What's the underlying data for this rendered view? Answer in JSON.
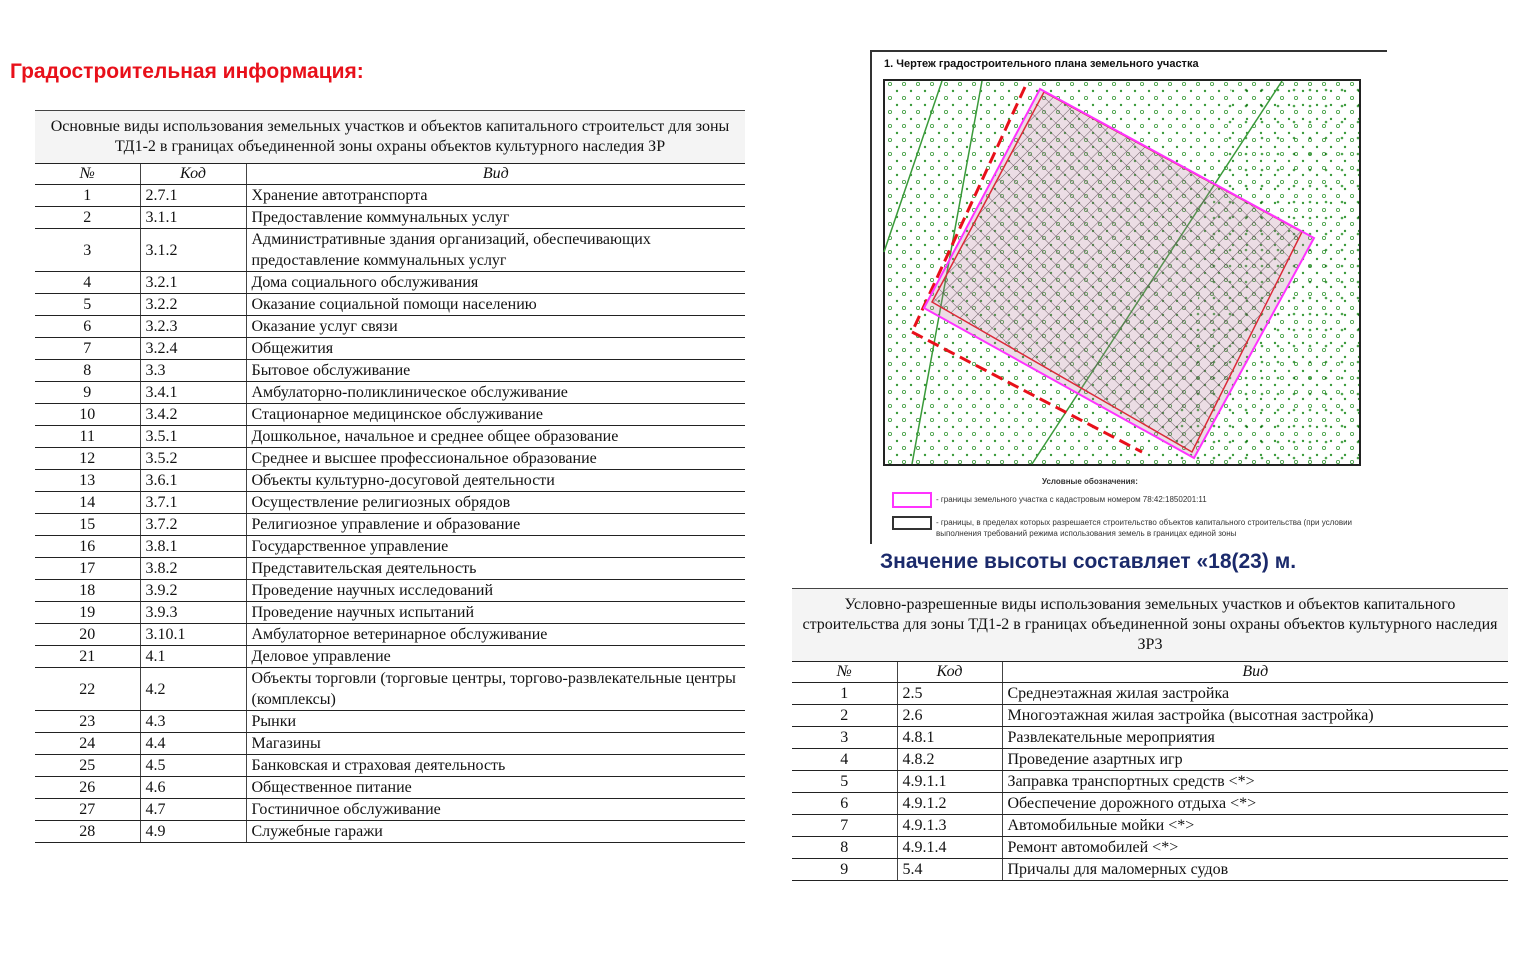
{
  "title": "Градостроительная информация:",
  "main_table": {
    "caption": "Основные виды использования земельных участков и объектов капитального строительст для зоны ТД1-2 в границах объединенной зоны охраны объектов культурного наследия ЗР",
    "headers": [
      "№",
      "Код",
      "Вид"
    ],
    "rows": [
      [
        "1",
        "2.7.1",
        "Хранение автотранспорта"
      ],
      [
        "2",
        "3.1.1",
        "Предоставление коммунальных услуг"
      ],
      [
        "3",
        "3.1.2",
        "Административные здания организаций, обеспечивающих предоставление коммунальных услуг"
      ],
      [
        "4",
        "3.2.1",
        "Дома социального обслуживания"
      ],
      [
        "5",
        "3.2.2",
        "Оказание социальной помощи населению"
      ],
      [
        "6",
        "3.2.3",
        "Оказание услуг связи"
      ],
      [
        "7",
        "3.2.4",
        "Общежития"
      ],
      [
        "8",
        "3.3",
        "Бытовое обслуживание"
      ],
      [
        "9",
        "3.4.1",
        "Амбулаторно-поликлиническое обслуживание"
      ],
      [
        "10",
        "3.4.2",
        "Стационарное медицинское обслуживание"
      ],
      [
        "11",
        "3.5.1",
        "Дошкольное, начальное и среднее общее образование"
      ],
      [
        "12",
        "3.5.2",
        "Среднее и высшее профессиональное образование"
      ],
      [
        "13",
        "3.6.1",
        "Объекты культурно-досуговой деятельности"
      ],
      [
        "14",
        "3.7.1",
        "Осуществление религиозных обрядов"
      ],
      [
        "15",
        "3.7.2",
        "Религиозное управление и образование"
      ],
      [
        "16",
        "3.8.1",
        "Государственное управление"
      ],
      [
        "17",
        "3.8.2",
        "Представительская деятельность"
      ],
      [
        "18",
        "3.9.2",
        "Проведение научных исследований"
      ],
      [
        "19",
        "3.9.3",
        "Проведение научных испытаний"
      ],
      [
        "20",
        "3.10.1",
        "Амбулаторное ветеринарное обслуживание"
      ],
      [
        "21",
        "4.1",
        "Деловое управление"
      ],
      [
        "22",
        "4.2",
        "Объекты торговли (торговые центры, торгово-развлекательные центры (комплексы)"
      ],
      [
        "23",
        "4.3",
        "Рынки"
      ],
      [
        "24",
        "4.4",
        "Магазины"
      ],
      [
        "25",
        "4.5",
        "Банковская и страховая деятельность"
      ],
      [
        "26",
        "4.6",
        "Общественное питание"
      ],
      [
        "27",
        "4.7",
        "Гостиничное обслуживание"
      ],
      [
        "28",
        "4.9",
        "Служебные гаражи"
      ]
    ]
  },
  "map": {
    "title": "1. Чертеж градостроительного плана земельного участка",
    "legend_title": "Условные обозначения:",
    "legend": [
      "- границы земельного участка с кадастровым номером 78:42:1850201:11",
      "- границы, в пределах которых разрешается строительство объектов капитального строительства (при условии выполнения требований режима использования земель в границах единой зоны"
    ],
    "colors": {
      "boundary": "#ff33ff",
      "red_line": "#e8101a",
      "vegetation": "#3a9a3a"
    }
  },
  "height_note": "Значение высоты составляет «18(23) м.",
  "conditional_table": {
    "caption": "Условно-разрешенные виды использования земельных участков и объектов капитального строительства для зоны ТД1-2 в границах объединенной зоны охраны объектов культурного наследия ЗР3",
    "headers": [
      "№",
      "Код",
      "Вид"
    ],
    "rows": [
      [
        "1",
        "2.5",
        "Среднеэтажная жилая застройка"
      ],
      [
        "2",
        "2.6",
        "Многоэтажная жилая застройка (высотная застройка)"
      ],
      [
        "3",
        "4.8.1",
        "Развлекательные мероприятия"
      ],
      [
        "4",
        "4.8.2",
        "Проведение азартных игр"
      ],
      [
        "5",
        "4.9.1.1",
        "Заправка транспортных средств <*>"
      ],
      [
        "6",
        "4.9.1.2",
        "Обеспечение дорожного отдыха <*>"
      ],
      [
        "7",
        "4.9.1.3",
        "Автомобильные мойки <*>"
      ],
      [
        "8",
        "4.9.1.4",
        "Ремонт автомобилей <*>"
      ],
      [
        "9",
        "5.4",
        "Причалы для маломерных судов"
      ]
    ]
  }
}
